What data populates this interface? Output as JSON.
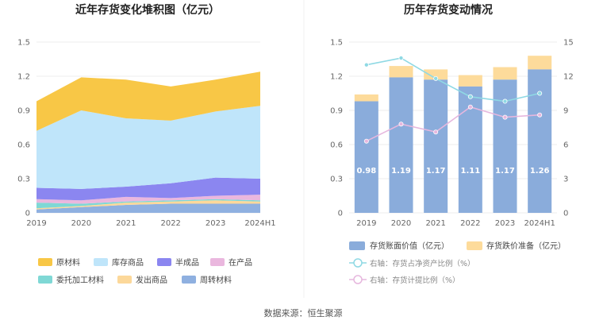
{
  "colors": {
    "raw_materials": "#F8C746",
    "stock_goods": "#BFE5FA",
    "semi_finished": "#8B86F0",
    "in_process": "#EAB7DE",
    "consigned": "#7FD8D5",
    "shipped": "#FCD89A",
    "turnover": "#8FB0E0",
    "book_value_bar": "#8AACDB",
    "reserve_bar": "#FDDB9B",
    "ratio_line": "#8FD9E4",
    "provision_line": "#E6B7DE"
  },
  "source": "数据来源：恒生聚源",
  "chart_data": [
    {
      "type": "area",
      "title": "近年存货变化堆积图（亿元）",
      "categories": [
        "2019",
        "2020",
        "2021",
        "2022",
        "2023",
        "2024H1"
      ],
      "ylim": [
        0,
        1.5
      ],
      "yticks": [
        "0",
        "0.3",
        "0.6",
        "0.9",
        "1.2",
        "1.5"
      ],
      "stacked": true,
      "series": [
        {
          "name": "周转材料",
          "color_key": "turnover",
          "values": [
            0.03,
            0.05,
            0.07,
            0.08,
            0.08,
            0.08
          ]
        },
        {
          "name": "发出商品",
          "color_key": "shipped",
          "values": [
            0.01,
            0.01,
            0.02,
            0.02,
            0.03,
            0.02
          ]
        },
        {
          "name": "委托加工材料",
          "color_key": "consigned",
          "values": [
            0.05,
            0.02,
            0.01,
            0.01,
            0.01,
            0.01
          ]
        },
        {
          "name": "在产品",
          "color_key": "in_process",
          "values": [
            0.03,
            0.03,
            0.04,
            0.02,
            0.03,
            0.05
          ]
        },
        {
          "name": "半成品",
          "color_key": "semi_finished",
          "values": [
            0.1,
            0.1,
            0.09,
            0.13,
            0.16,
            0.14
          ]
        },
        {
          "name": "库存商品",
          "color_key": "stock_goods",
          "values": [
            0.5,
            0.69,
            0.6,
            0.55,
            0.58,
            0.64
          ]
        },
        {
          "name": "原材料",
          "color_key": "raw_materials",
          "values": [
            0.26,
            0.29,
            0.34,
            0.3,
            0.28,
            0.3
          ]
        }
      ],
      "legend": [
        {
          "name": "原材料",
          "color_key": "raw_materials"
        },
        {
          "name": "库存商品",
          "color_key": "stock_goods"
        },
        {
          "name": "半成品",
          "color_key": "semi_finished"
        },
        {
          "name": "在产品",
          "color_key": "in_process"
        },
        {
          "name": "委托加工材料",
          "color_key": "consigned"
        },
        {
          "name": "发出商品",
          "color_key": "shipped"
        },
        {
          "name": "周转材料",
          "color_key": "turnover"
        }
      ]
    },
    {
      "type": "bar",
      "title": "历年存货变动情况",
      "categories": [
        "2019",
        "2020",
        "2021",
        "2022",
        "2023",
        "2024H1"
      ],
      "ylim": [
        0,
        1.5
      ],
      "yticks": [
        "0",
        "0.3",
        "0.6",
        "0.9",
        "1.2",
        "1.5"
      ],
      "y2lim": [
        0,
        15
      ],
      "y2ticks": [
        "0",
        "3",
        "6",
        "9",
        "12",
        "15"
      ],
      "bars": {
        "book_value": {
          "name": "存货账面价值（亿元）",
          "values": [
            0.98,
            1.19,
            1.17,
            1.11,
            1.17,
            1.26
          ],
          "labels": [
            "0.98",
            "1.19",
            "1.17",
            "1.11",
            "1.17",
            "1.26"
          ]
        },
        "reserve": {
          "name": "存货跌价准备（亿元）",
          "values": [
            0.06,
            0.1,
            0.09,
            0.1,
            0.11,
            0.12
          ]
        }
      },
      "lines": [
        {
          "name": "右轴：存货占净资产比例（%）",
          "color_key": "ratio_line",
          "values": [
            13.0,
            13.6,
            11.8,
            10.2,
            9.8,
            10.5
          ]
        },
        {
          "name": "右轴：存货计提比例（%）",
          "color_key": "provision_line",
          "values": [
            6.3,
            7.8,
            7.1,
            9.3,
            8.4,
            8.6
          ]
        }
      ]
    }
  ]
}
